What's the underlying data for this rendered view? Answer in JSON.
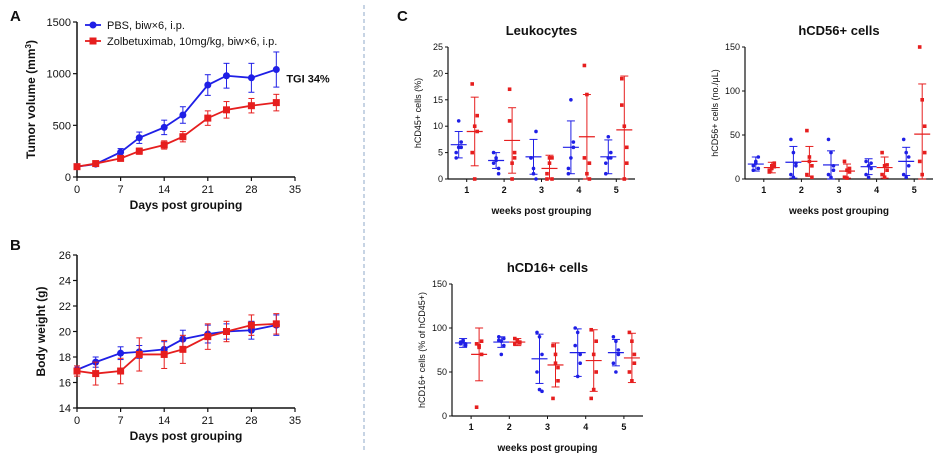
{
  "panels": {
    "a": "A",
    "b": "B",
    "c": "C"
  },
  "chart_data": [
    {
      "type": "line",
      "xlabel": "Days post grouping",
      "ylabel": "Tumor volume (mm",
      "ylabel_sup": "3",
      "ylabel_end": ")",
      "xlim": [
        0,
        35
      ],
      "ylim": [
        0,
        1500
      ],
      "xticks": [
        "0",
        "7",
        "14",
        "21",
        "28",
        "35"
      ],
      "yticks": [
        "0",
        "500",
        "1000",
        "1500"
      ],
      "annotation": "TGI 34%",
      "legend_location": "top-left",
      "series": [
        {
          "name": "PBS, biw×6, i.p.",
          "color": "#1f1fe6",
          "marker": "circle",
          "x": [
            0,
            3,
            7,
            10,
            14,
            17,
            21,
            24,
            28,
            32
          ],
          "y": [
            100,
            125,
            240,
            380,
            480,
            600,
            890,
            980,
            960,
            1040
          ],
          "err": [
            15,
            20,
            35,
            55,
            70,
            80,
            100,
            120,
            140,
            170
          ]
        },
        {
          "name": "Zolbetuximab, 10mg/kg, biw×6, i.p.",
          "color": "#e61e1e",
          "marker": "square",
          "x": [
            0,
            3,
            7,
            10,
            14,
            17,
            21,
            24,
            28,
            32
          ],
          "y": [
            100,
            130,
            180,
            250,
            310,
            390,
            570,
            650,
            690,
            720
          ],
          "err": [
            10,
            15,
            25,
            30,
            40,
            50,
            70,
            80,
            70,
            80
          ]
        }
      ]
    },
    {
      "type": "line",
      "xlabel": "Days post grouping",
      "ylabel": "Body weight (g)",
      "xlim": [
        0,
        35
      ],
      "ylim": [
        14,
        26
      ],
      "xticks": [
        "0",
        "7",
        "14",
        "21",
        "28",
        "35"
      ],
      "yticks": [
        "14",
        "16",
        "18",
        "20",
        "22",
        "24",
        "26"
      ],
      "series": [
        {
          "color": "#1f1fe6",
          "marker": "circle",
          "x": [
            0,
            3,
            7,
            10,
            14,
            17,
            21,
            24,
            28,
            32
          ],
          "y": [
            17.0,
            17.6,
            18.3,
            18.4,
            18.6,
            19.4,
            19.8,
            20.0,
            20.1,
            20.5
          ],
          "err": [
            0.3,
            0.4,
            0.5,
            0.5,
            0.6,
            0.7,
            0.7,
            0.6,
            0.7,
            0.8
          ]
        },
        {
          "color": "#e61e1e",
          "marker": "square",
          "x": [
            0,
            3,
            7,
            10,
            14,
            17,
            21,
            24,
            28,
            32
          ],
          "y": [
            16.9,
            16.7,
            16.9,
            18.2,
            18.2,
            18.6,
            19.6,
            20.0,
            20.5,
            20.6
          ],
          "err": [
            0.4,
            0.9,
            1.0,
            1.3,
            1.1,
            1.1,
            1.0,
            0.8,
            0.8,
            0.8
          ]
        }
      ]
    },
    {
      "type": "scatter",
      "title": "Leukocytes",
      "xlabel": "weeks post grouping",
      "ylabel": "hCD45+ cells (%)",
      "categories": [
        "1",
        "2",
        "3",
        "4",
        "5"
      ],
      "ylim": [
        0,
        25
      ],
      "yticks": [
        "0",
        "5",
        "10",
        "15",
        "20",
        "25"
      ],
      "series": [
        {
          "color": "#1f1fe6",
          "mean": [
            6.5,
            3.5,
            4.2,
            6.0,
            4.2
          ],
          "sd": [
            2.5,
            1.5,
            3.3,
            5.0,
            3.2
          ],
          "points": [
            [
              5,
              6,
              7,
              4,
              11,
              6
            ],
            [
              3,
              3.5,
              2,
              5,
              4,
              1
            ],
            [
              4,
              2,
              9,
              4,
              1,
              0
            ],
            [
              2,
              4,
              6,
              1,
              15,
              7
            ],
            [
              3,
              4,
              5,
              1,
              8,
              4
            ]
          ]
        },
        {
          "color": "#e61e1e",
          "mean": [
            9.0,
            7.3,
            2.0,
            8.0,
            9.3
          ],
          "sd": [
            6.5,
            6.2,
            2.5,
            8.0,
            10.2
          ],
          "points": [
            [
              18,
              0,
              9,
              5,
              10,
              12
            ],
            [
              17,
              0,
              5,
              11,
              3,
              4
            ],
            [
              0,
              4,
              4,
              1,
              3,
              0
            ],
            [
              21.5,
              16,
              3,
              4,
              1,
              0
            ],
            [
              19,
              0,
              3,
              14,
              10,
              6
            ]
          ]
        }
      ]
    },
    {
      "type": "scatter",
      "title": "hCD56+ cells",
      "xlabel": "weeks post grouping",
      "ylabel": "hCD56+ cells (no./μL)",
      "categories": [
        "1",
        "2",
        "3",
        "4",
        "5"
      ],
      "ylim": [
        0,
        150
      ],
      "yticks": [
        "0",
        "50",
        "100",
        "150"
      ],
      "series": [
        {
          "color": "#1f1fe6",
          "mean": [
            17,
            19,
            16,
            14,
            20
          ],
          "sd": [
            8,
            18,
            16,
            9,
            16
          ],
          "points": [
            [
              10,
              20,
              25,
              15,
              18,
              12
            ],
            [
              45,
              30,
              15,
              5,
              2,
              18
            ],
            [
              45,
              30,
              10,
              5,
              2,
              15
            ],
            [
              20,
              15,
              12,
              5,
              2,
              18
            ],
            [
              45,
              30,
              15,
              5,
              2,
              25
            ]
          ]
        },
        {
          "color": "#e61e1e",
          "mean": [
            13,
            20,
            9,
            13,
            51
          ],
          "sd": [
            6,
            17,
            8,
            12,
            57
          ],
          "points": [
            [
              10,
              15,
              18,
              8,
              12,
              14
            ],
            [
              55,
              25,
              15,
              5,
              20,
              2
            ],
            [
              20,
              10,
              8,
              2,
              1,
              12
            ],
            [
              30,
              15,
              10,
              5,
              2,
              16
            ],
            [
              150,
              90,
              60,
              20,
              5,
              30
            ]
          ]
        }
      ]
    },
    {
      "type": "scatter",
      "title": "hCD16+ cells",
      "xlabel": "weeks post grouping",
      "ylabel": "hCD16+ cells (% of hCD45+)",
      "categories": [
        "1",
        "2",
        "3",
        "4",
        "5"
      ],
      "ylim": [
        0,
        150
      ],
      "yticks": [
        "0",
        "50",
        "100",
        "150"
      ],
      "series": [
        {
          "color": "#1f1fe6",
          "mean": [
            83,
            84,
            65,
            72,
            72
          ],
          "sd": [
            5,
            6,
            28,
            27,
            15
          ],
          "points": [
            [
              82,
              85,
              80,
              84,
              86,
              82
            ],
            [
              90,
              85,
              80,
              86,
              70,
              88
            ],
            [
              95,
              90,
              70,
              50,
              30,
              28
            ],
            [
              100,
              95,
              60,
              80,
              45,
              70
            ],
            [
              90,
              85,
              70,
              60,
              50,
              75
            ]
          ]
        },
        {
          "color": "#e61e1e",
          "mean": [
            70,
            84,
            58,
            63,
            66
          ],
          "sd": [
            30,
            4,
            25,
            35,
            28
          ],
          "points": [
            [
              10,
              80,
              85,
              82,
              78,
              70
            ],
            [
              88,
              85,
              84,
              82,
              86,
              83
            ],
            [
              80,
              60,
              40,
              20,
              70,
              55
            ],
            [
              98,
              70,
              50,
              20,
              30,
              85
            ],
            [
              95,
              85,
              70,
              50,
              40,
              60
            ]
          ]
        }
      ]
    }
  ]
}
